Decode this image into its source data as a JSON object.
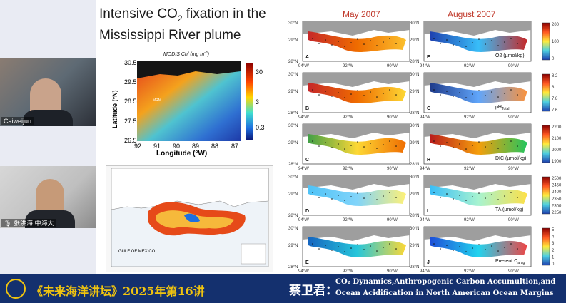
{
  "participants": [
    {
      "name": "Caiweijun"
    },
    {
      "name": "张洪海 中海大"
    }
  ],
  "slide": {
    "title_main": "Intensive CO",
    "title_sub": "2",
    "title_rest": " fixation in the Mississippi River plume",
    "month_left": "May 2007",
    "month_right": "August 2007",
    "modis": {
      "caption": "MODIS Chl (mg m",
      "caption_sup": "-3",
      "caption_end": ")",
      "ylabel": "Latitude (°N)",
      "xlabel": "Longitude (°W)",
      "yticks": [
        "30.5",
        "29.5",
        "28.5",
        "27.5",
        "26.5"
      ],
      "xticks": [
        "92",
        "91",
        "90",
        "89",
        "88",
        "87"
      ],
      "cbar": [
        "30",
        "3",
        "0.3"
      ],
      "label_inline": "MRM"
    },
    "map2": {
      "label": "GULF OF MEXICO"
    },
    "panels_left": [
      "A",
      "B",
      "C",
      "D",
      "E"
    ],
    "panels_right": [
      "F",
      "G",
      "H",
      "I",
      "J"
    ],
    "right_vars": [
      "O2 (µmol/kg)",
      "pH",
      "DIC (µmol/kg)",
      "TA (µmol/kg)",
      "Present Ω"
    ],
    "right_var_subs": [
      "",
      "Total",
      "",
      "",
      "arag"
    ],
    "lat_ticks": [
      "30°N",
      "29°N",
      "28°N"
    ],
    "lon_ticks": [
      "94°W",
      "92°W",
      "90°W"
    ],
    "cbars": [
      [
        "200",
        "100",
        "0"
      ],
      [
        "8.2",
        "8",
        "7.8",
        "7.6"
      ],
      [
        "2200",
        "2100",
        "2000",
        "1900"
      ],
      [
        "2500",
        "2450",
        "2400",
        "2350",
        "2300",
        "2250"
      ],
      [
        "5",
        "4",
        "3",
        "2",
        "1",
        "0"
      ]
    ]
  },
  "banner": {
    "series": "《未来海洋讲坛》2025年第16讲",
    "speaker": "蔡卫君：",
    "talk_line1": "CO₂ Dynamics,Anthropogenic Carbon Accumultion,and",
    "talk_line2": "Ocean Acidification in North American Ocean Margins"
  }
}
